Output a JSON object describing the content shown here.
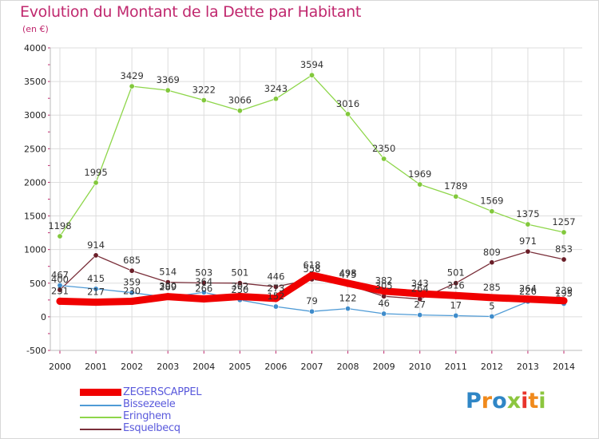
{
  "title": "Evolution du Montant de la Dette par Habitant",
  "unit_label": "(en €)",
  "logo_text": "Proxiti",
  "colors": {
    "title": "#c0286e",
    "grid": "#dddddd",
    "axis_text": "#222222",
    "legend_text": "#5a5adc"
  },
  "chart_data": {
    "type": "line",
    "x": [
      2000,
      2001,
      2002,
      2003,
      2004,
      2005,
      2006,
      2007,
      2008,
      2009,
      2010,
      2011,
      2012,
      2013,
      2014
    ],
    "ylim": [
      -500,
      4000
    ],
    "yticks": [
      -500,
      0,
      500,
      1000,
      1500,
      2000,
      2500,
      3000,
      3500,
      4000
    ],
    "grid": true,
    "legend_position": "bottom-left",
    "series": [
      {
        "name": "Eringhem",
        "color": "#8ed64a",
        "marker": "#82c83c",
        "values": [
          1198,
          1995,
          3429,
          3369,
          3222,
          3066,
          3243,
          3594,
          3016,
          2350,
          1969,
          1789,
          1569,
          1375,
          1257
        ],
        "labels": [
          "1198",
          "1995",
          "3429",
          "3369",
          "3222",
          "3066",
          "3243",
          "3594",
          "3016",
          "2350",
          "1969",
          "1789",
          "1569",
          "1375",
          "1257"
        ]
      },
      {
        "name": "Esquelbecq",
        "color": "#7a2f3a",
        "marker": "#6a1e28",
        "values": [
          400,
          914,
          685,
          514,
          503,
          501,
          446,
          558,
          475,
          305,
          264,
          501,
          809,
          971,
          853
        ],
        "labels": [
          "400",
          "914",
          "685",
          "514",
          "503",
          "501",
          "446",
          "558",
          "475",
          "305",
          "264",
          "501",
          "809",
          "971",
          "853"
        ]
      },
      {
        "name": "Bissezeele",
        "color": "#4f9bd6",
        "marker": "#3f8ccb",
        "values": [
          467,
          415,
          359,
          289,
          364,
          250,
          152,
          79,
          122,
          46,
          27,
          17,
          5,
          226,
          195
        ],
        "labels": [
          "467",
          "415",
          "359",
          "289",
          "364",
          "250",
          "152",
          "79",
          "122",
          "46",
          "27",
          "17",
          "5",
          "226",
          "195"
        ]
      },
      {
        "name": "ZEGERSCAPPEL",
        "color": "#f00000",
        "marker": "#f00000",
        "values": [
          231,
          217,
          230,
          300,
          266,
          302,
          273,
          618,
          498,
          382,
          343,
          316,
          285,
          264,
          239
        ],
        "labels": [
          "231",
          "217",
          "230",
          "300",
          "266",
          "302",
          "273",
          "618",
          "498",
          "382",
          "343",
          "316",
          "285",
          "264",
          "239"
        ],
        "emphasis": true
      }
    ]
  }
}
